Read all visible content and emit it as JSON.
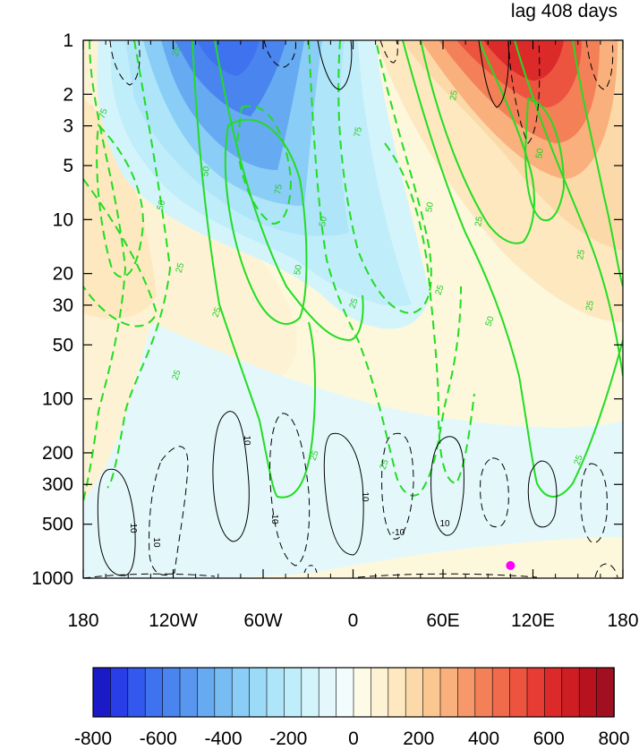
{
  "chart_data": {
    "type": "heatmap",
    "title": "lag 408 days",
    "xlabel": "",
    "ylabel": "",
    "x_ticks": [
      "180",
      "120W",
      "60W",
      "0",
      "60E",
      "120E",
      "180"
    ],
    "y_ticks": [
      "1",
      "2",
      "3",
      "5",
      "10",
      "20",
      "30",
      "50",
      "100",
      "200",
      "300",
      "500",
      "1000"
    ],
    "y_scale": "log",
    "y_reversed": true,
    "colorbar": {
      "levels": [
        -800,
        -750,
        -700,
        -650,
        -600,
        -550,
        -500,
        -450,
        -400,
        -350,
        -300,
        -250,
        -200,
        -150,
        -100,
        -50,
        0,
        50,
        100,
        150,
        200,
        250,
        300,
        350,
        400,
        450,
        500,
        550,
        600,
        650,
        700,
        750,
        800
      ],
      "tick_labels": [
        "-800",
        "-600",
        "-400",
        "-200",
        "0",
        "200",
        "400",
        "600",
        "800"
      ],
      "colors": [
        "#1a1ac8",
        "#2a3ee8",
        "#3358ee",
        "#3f72ee",
        "#4a84ef",
        "#5896ef",
        "#66aaf2",
        "#78bcf4",
        "#8acdf6",
        "#9cdbf8",
        "#aee5f9",
        "#c0edfa",
        "#d4f4fb",
        "#e4f8fb",
        "#f2fcfc",
        "#fdfbe6",
        "#fdf3d4",
        "#fde8c0",
        "#fcd9a8",
        "#fbc690",
        "#f9b07c",
        "#f7986a",
        "#f48058",
        "#f06a4c",
        "#ec5440",
        "#e63c34",
        "#dc2a2a",
        "#ce1e24",
        "#b8121e",
        "#a01020"
      ]
    },
    "contour_labels": {
      "green": [
        "75",
        "50",
        "25",
        "75",
        "50",
        "25",
        "25",
        "25",
        "50",
        "75",
        "25",
        "50",
        "25",
        "50",
        "25",
        "25",
        "50",
        "25",
        "50",
        "25",
        "25",
        "25",
        "25"
      ],
      "black": [
        "10",
        "10",
        "10",
        "10",
        "10",
        "-10",
        "10"
      ]
    },
    "marker": {
      "lon": 105,
      "pressure": 850,
      "color": "#ff00ff"
    }
  }
}
